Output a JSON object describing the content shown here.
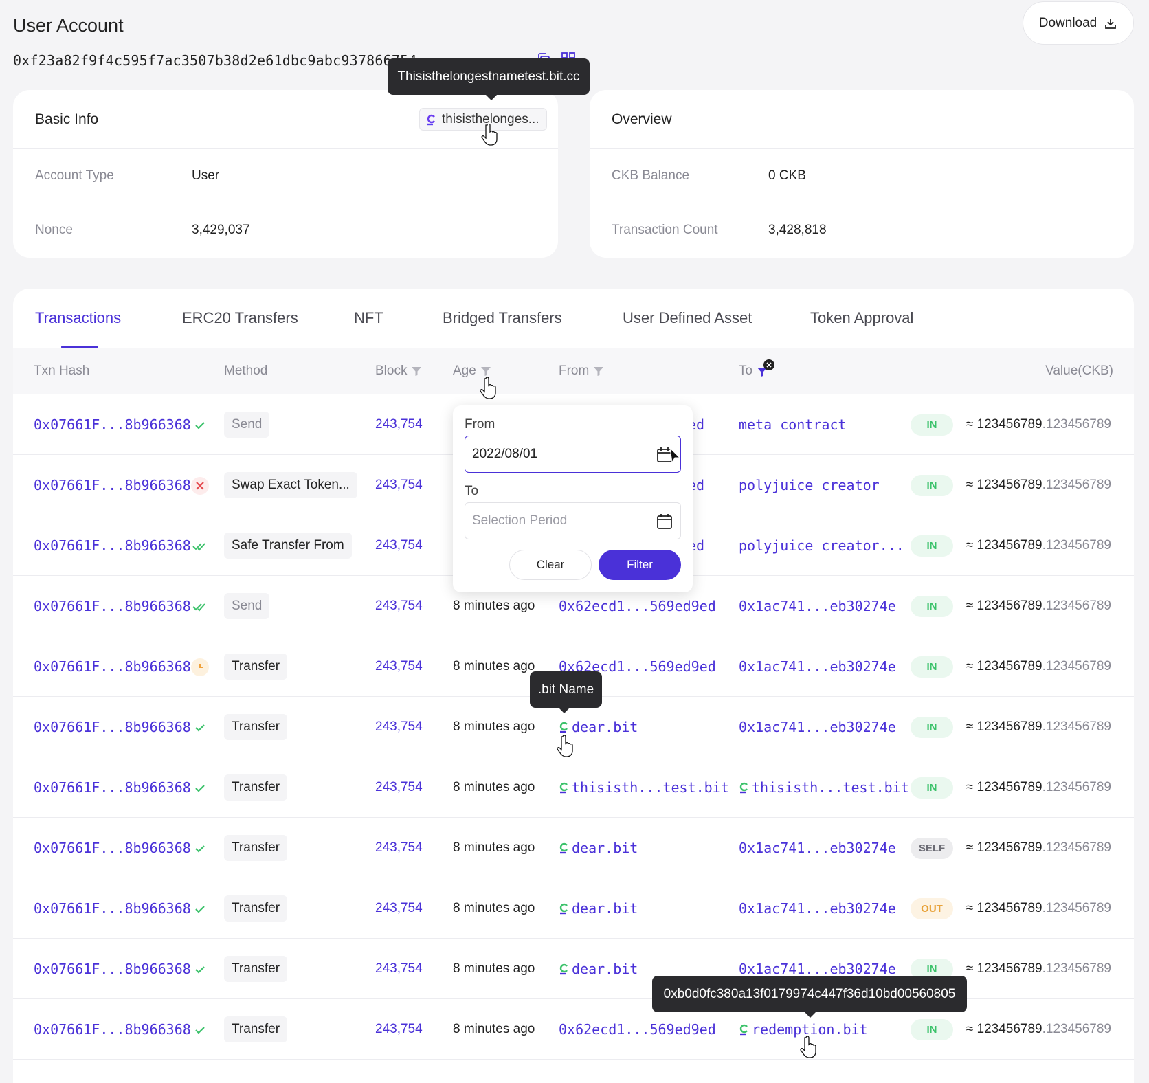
{
  "header": {
    "title": "User Account",
    "download_label": "Download",
    "address": "0xf23a82f9f4c595f7ac3507b38d2e61dbc9abc937866754"
  },
  "basic_info": {
    "title": "Basic Info",
    "bit_name_short": "thisisthelonges...",
    "tooltip_full_name": "Thisisthelongestnametest.bit.cc",
    "rows": [
      {
        "label": "Account Type",
        "value": "User"
      },
      {
        "label": "Nonce",
        "value": "3,429,037"
      }
    ]
  },
  "overview": {
    "title": "Overview",
    "rows": [
      {
        "label": "CKB Balance",
        "value": "0 CKB"
      },
      {
        "label": "Transaction Count",
        "value": "3,428,818"
      }
    ]
  },
  "tabs": [
    {
      "label": "Transactions",
      "active": true
    },
    {
      "label": "ERC20 Transfers"
    },
    {
      "label": "NFT"
    },
    {
      "label": "Bridged Transfers"
    },
    {
      "label": "User Defined Asset"
    },
    {
      "label": "Token Approval"
    }
  ],
  "table": {
    "columns": {
      "txn_hash": "Txn Hash",
      "method": "Method",
      "block": "Block",
      "age": "Age",
      "from": "From",
      "to": "To",
      "value": "Value(CKB)"
    },
    "rows": [
      {
        "hash": "0x07661F...8b966368",
        "status": "success",
        "method": "Send",
        "method_muted": true,
        "block": "243,754",
        "age": "",
        "from": "ed",
        "from_bit": false,
        "to": "meta contract",
        "to_bit": false,
        "direction": "IN",
        "value_int": "≈ 123456789",
        "value_dec": ".123456789"
      },
      {
        "hash": "0x07661F...8b966368",
        "status": "failed",
        "method": "Swap Exact Token...",
        "block": "243,754",
        "age": "",
        "from": "ed",
        "from_bit": false,
        "to": "polyjuice creator",
        "to_bit": false,
        "direction": "IN",
        "value_int": "≈ 123456789",
        "value_dec": ".123456789"
      },
      {
        "hash": "0x07661F...8b966368",
        "status": "finalized",
        "method": "Safe Transfer From",
        "block": "243,754",
        "age": "",
        "from": "ed",
        "from_bit": false,
        "to": "polyjuice creator...",
        "to_bit": false,
        "direction": "IN",
        "value_int": "≈ 123456789",
        "value_dec": ".123456789"
      },
      {
        "hash": "0x07661F...8b966368",
        "status": "finalized",
        "method": "Send",
        "method_muted": true,
        "block": "243,754",
        "age": "8 minutes ago",
        "from": "0x62ecd1...569ed9ed",
        "from_bit": false,
        "to": "0x1ac741...eb30274e",
        "to_bit": false,
        "direction": "IN",
        "value_int": "≈ 123456789",
        "value_dec": ".123456789"
      },
      {
        "hash": "0x07661F...8b966368",
        "status": "pending",
        "method": "Transfer",
        "block": "243,754",
        "age": "8 minutes ago",
        "from": "0x62ecd1...569ed9ed",
        "from_bit": false,
        "to": "0x1ac741...eb30274e",
        "to_bit": false,
        "direction": "IN",
        "value_int": "≈ 123456789",
        "value_dec": ".123456789"
      },
      {
        "hash": "0x07661F...8b966368",
        "status": "success",
        "method": "Transfer",
        "block": "243,754",
        "age": "8 minutes ago",
        "from": "dear.bit",
        "from_bit": true,
        "to": "0x1ac741...eb30274e",
        "to_bit": false,
        "direction": "IN",
        "value_int": "≈ 123456789",
        "value_dec": ".123456789"
      },
      {
        "hash": "0x07661F...8b966368",
        "status": "success",
        "method": "Transfer",
        "block": "243,754",
        "age": "8 minutes ago",
        "from": "thisisth...test.bit",
        "from_bit": true,
        "to": "thisisth...test.bit",
        "to_bit": true,
        "direction": "IN",
        "value_int": "≈ 123456789",
        "value_dec": ".123456789"
      },
      {
        "hash": "0x07661F...8b966368",
        "status": "success",
        "method": "Transfer",
        "block": "243,754",
        "age": "8 minutes ago",
        "from": "dear.bit",
        "from_bit": true,
        "to": "0x1ac741...eb30274e",
        "to_bit": false,
        "direction": "SELF",
        "value_int": "≈ 123456789",
        "value_dec": ".123456789"
      },
      {
        "hash": "0x07661F...8b966368",
        "status": "success",
        "method": "Transfer",
        "block": "243,754",
        "age": "8 minutes ago",
        "from": "dear.bit",
        "from_bit": true,
        "to": "0x1ac741...eb30274e",
        "to_bit": false,
        "direction": "OUT",
        "value_int": "≈ 123456789",
        "value_dec": ".123456789"
      },
      {
        "hash": "0x07661F...8b966368",
        "status": "success",
        "method": "Transfer",
        "block": "243,754",
        "age": "8 minutes ago",
        "from": "dear.bit",
        "from_bit": true,
        "to": "0x1ac741...eb30274e",
        "to_bit": false,
        "direction": "IN",
        "value_int": "≈ 123456789",
        "value_dec": ".123456789"
      },
      {
        "hash": "0x07661F...8b966368",
        "status": "success",
        "method": "Transfer",
        "block": "243,754",
        "age": "8 minutes ago",
        "from": "0x62ecd1...569ed9ed",
        "from_bit": false,
        "to": "redemption.bit",
        "to_bit": true,
        "direction": "IN",
        "value_int": "≈ 123456789",
        "value_dec": ".123456789"
      }
    ]
  },
  "date_filter": {
    "from_label": "From",
    "from_value": "2022/08/01",
    "to_label": "To",
    "to_placeholder": "Selection Period",
    "clear_label": "Clear",
    "filter_label": "Filter"
  },
  "tooltips": {
    "bit_name": ".bit Name",
    "address": "0xb0d0fc380a13f0179974c447f36d10bd00560805"
  },
  "colors": {
    "accent": "#4a31d8",
    "success": "#3cc26b",
    "failed": "#e5484d",
    "pending": "#f0a13b"
  }
}
